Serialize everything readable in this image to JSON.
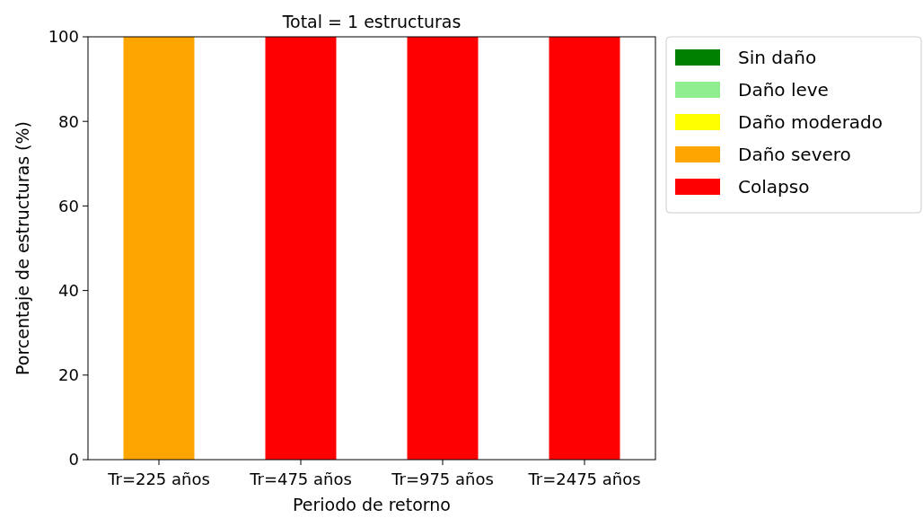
{
  "chart_data": {
    "type": "bar",
    "stacked": true,
    "title": "Total = 1 estructuras",
    "xlabel": "Periodo de retorno",
    "ylabel": "Porcentaje de estructuras (%)",
    "categories": [
      "Tr=225 años",
      "Tr=475 años",
      "Tr=975 años",
      "Tr=2475 años"
    ],
    "series": [
      {
        "name": "Sin daño",
        "color": "#008000",
        "values": [
          0,
          0,
          0,
          0
        ]
      },
      {
        "name": "Daño leve",
        "color": "#90ee90",
        "values": [
          0,
          0,
          0,
          0
        ]
      },
      {
        "name": "Daño moderado",
        "color": "#ffff00",
        "values": [
          0,
          0,
          0,
          0
        ]
      },
      {
        "name": "Daño severo",
        "color": "#ffa500",
        "values": [
          100,
          0,
          0,
          0
        ]
      },
      {
        "name": "Colapso",
        "color": "#ff0000",
        "values": [
          0,
          100,
          100,
          100
        ]
      }
    ],
    "ylim": [
      0,
      100
    ],
    "yticks": [
      0,
      20,
      40,
      60,
      80,
      100
    ],
    "legend": "right",
    "grid": false
  }
}
